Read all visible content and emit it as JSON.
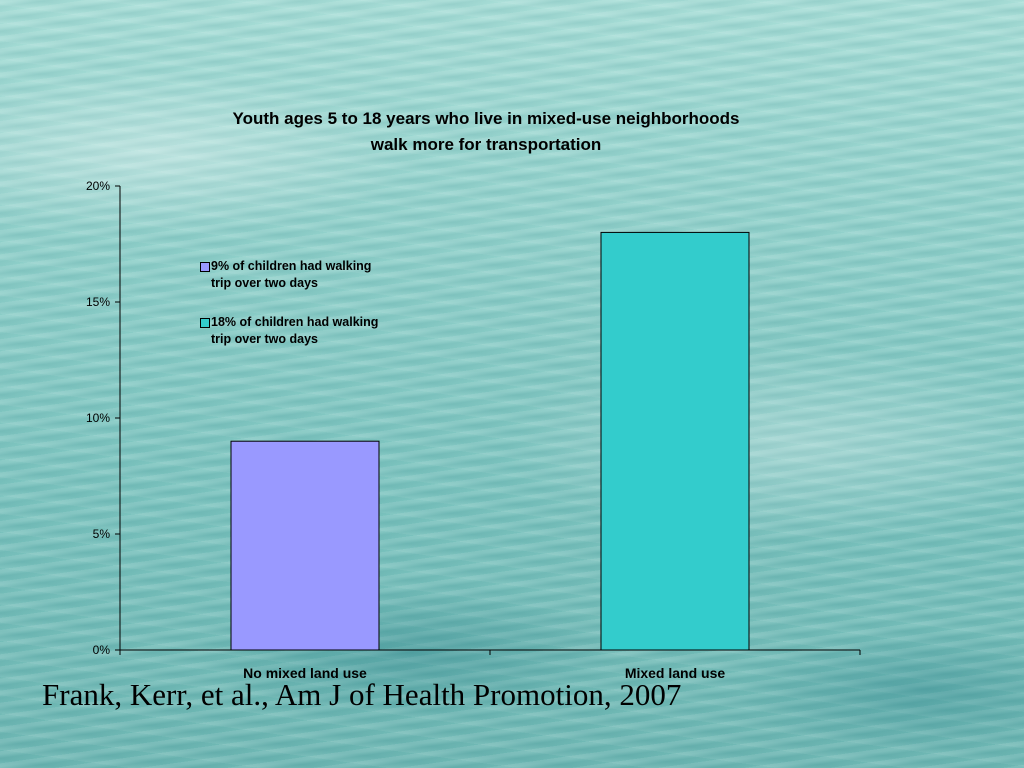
{
  "chart_data": {
    "type": "bar",
    "title_lines": [
      "Youth ages 5 to 18 years who live in mixed-use neighborhoods",
      "walk more for transportation"
    ],
    "categories": [
      "No mixed land use",
      "Mixed land use"
    ],
    "values": [
      9,
      18
    ],
    "bar_colors": [
      "#9999ff",
      "#33cccc"
    ],
    "ylim": [
      0,
      20
    ],
    "yticks": [
      0,
      5,
      10,
      15,
      20
    ],
    "ytick_labels": [
      "0%",
      "5%",
      "10%",
      "15%",
      "20%"
    ],
    "legend": [
      {
        "line1": "9% of children had walking",
        "line2": "trip over two days",
        "color": "#9999ff"
      },
      {
        "line1": "18% of children had walking",
        "line2": "trip over two days",
        "color": "#33cccc"
      }
    ],
    "legend_position": "upper-left",
    "grid": false
  },
  "citation": "Frank, Kerr, et al., Am J of Health Promotion, 2007"
}
